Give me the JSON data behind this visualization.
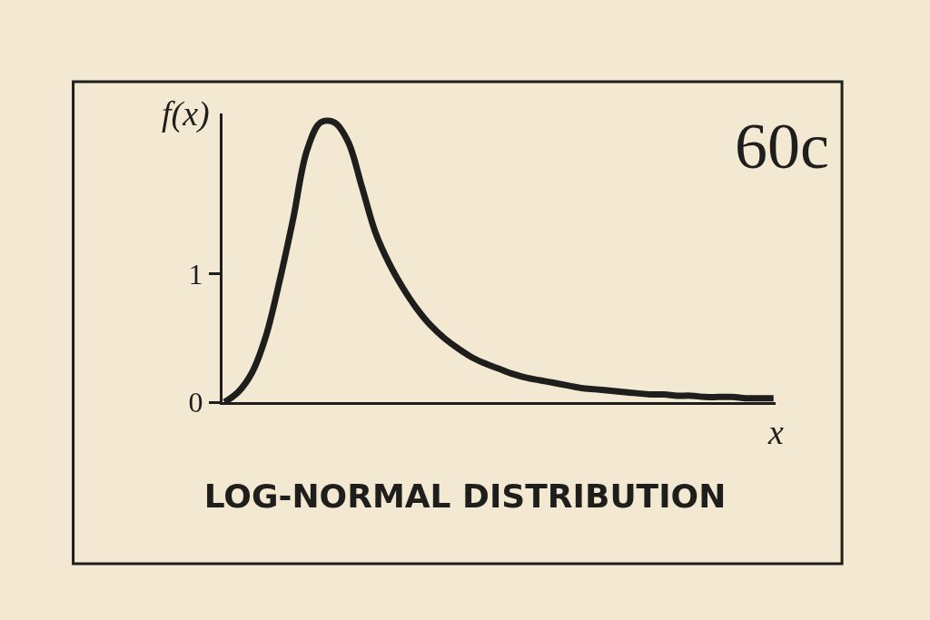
{
  "chart_data": {
    "type": "line",
    "title": "LOG-NORMAL DISTRIBUTION",
    "xlabel": "x",
    "ylabel": "f(x)",
    "annotations": [
      "60c"
    ],
    "categories": [
      null,
      null,
      null,
      null,
      null,
      null,
      null,
      null,
      null,
      null,
      null,
      null,
      null,
      null,
      null,
      null,
      null,
      null,
      null,
      null,
      null,
      null,
      null,
      null,
      null,
      null,
      null,
      null,
      null,
      null,
      null,
      null,
      null,
      null,
      null,
      null,
      null,
      null,
      null,
      null,
      null
    ],
    "series": [
      {
        "color": "#1e1e1c",
        "values": [
          0,
          0.08,
          0.23,
          0.51,
          0.94,
          1.43,
          1.96,
          2.18,
          2.18,
          2.03,
          1.68,
          1.32,
          1.08,
          0.89,
          0.73,
          0.6,
          0.5,
          0.42,
          0.35,
          0.3,
          0.26,
          0.22,
          0.19,
          0.17,
          0.15,
          0.13,
          0.11,
          0.1,
          0.09,
          0.08,
          0.07,
          0.06,
          0.06,
          0.05,
          0.05,
          0.04,
          0.04,
          0.04,
          0.03,
          0.03,
          0.03
        ]
      }
    ],
    "ylim": [
      0,
      2.25
    ],
    "yticks": [
      0,
      1
    ],
    "tick_labels": "y",
    "grid": false,
    "legend": false,
    "marker": "none",
    "line_style": "solid"
  }
}
